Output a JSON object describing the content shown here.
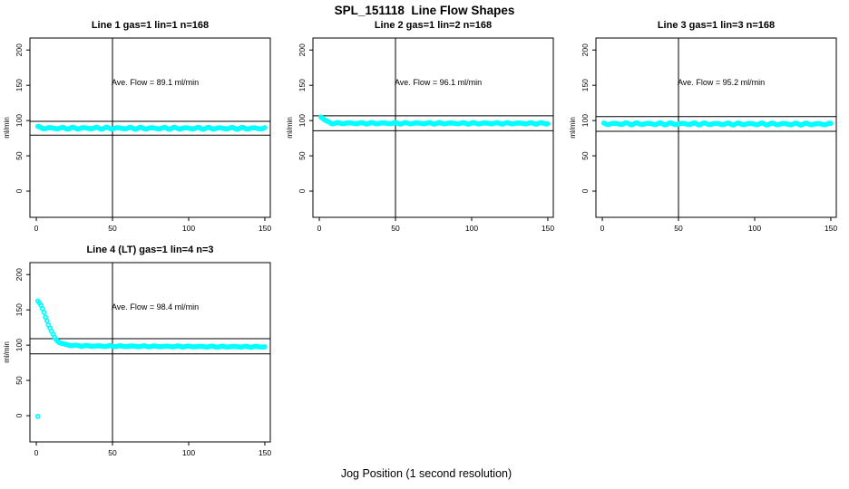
{
  "page_title": "SPL_151118  Line Flow Shapes",
  "xlabel": "Jog Position (1 second resolution)",
  "colors": {
    "points": "#00FFFF",
    "axis": "#000000",
    "background": "#ffffff"
  },
  "chart_data": [
    {
      "type": "scatter",
      "title": "Line 1 gas=1 lin=1 n=168",
      "line": 1,
      "gas": 1,
      "lin": 1,
      "n": 168,
      "annotation": "Ave. Flow =  89.1  ml/min",
      "ave_flow": 89.1,
      "ylabel": "ml/min",
      "x_ticks": [
        0,
        50,
        100,
        150
      ],
      "y_ticks": [
        0,
        50,
        100,
        150,
        200
      ],
      "xlim": [
        0,
        150
      ],
      "ylim": [
        -20,
        210
      ],
      "ref_lines": {
        "upper": 98.9,
        "lower": 79.3,
        "vertical_x": 50
      },
      "series": {
        "x_start": 1,
        "x_end": 150,
        "jitter": 1.2,
        "breakpoints": [
          [
            1,
            90.5
          ],
          [
            3,
            89.5
          ],
          [
            10,
            89.2
          ],
          [
            150,
            89.0
          ]
        ],
        "outliers": []
      }
    },
    {
      "type": "scatter",
      "title": "Line 2 gas=1 lin=2 n=168",
      "line": 2,
      "gas": 1,
      "lin": 2,
      "n": 168,
      "annotation": "Ave. Flow =  96.1  ml/min",
      "ave_flow": 96.1,
      "ylabel": "ml/min",
      "x_ticks": [
        0,
        50,
        100,
        150
      ],
      "y_ticks": [
        0,
        50,
        100,
        150,
        200
      ],
      "xlim": [
        0,
        150
      ],
      "ylim": [
        -20,
        210
      ],
      "ref_lines": {
        "upper": 106.7,
        "lower": 85.5,
        "vertical_x": 50
      },
      "series": {
        "x_start": 1,
        "x_end": 150,
        "jitter": 0.9,
        "breakpoints": [
          [
            1,
            105.5
          ],
          [
            2,
            104
          ],
          [
            3,
            102
          ],
          [
            4,
            100
          ],
          [
            5,
            98.5
          ],
          [
            6,
            97.5
          ],
          [
            8,
            96.5
          ],
          [
            12,
            96.2
          ],
          [
            150,
            96.0
          ]
        ],
        "outliers": []
      }
    },
    {
      "type": "scatter",
      "title": "Line 3 gas=1 lin=3 n=168",
      "line": 3,
      "gas": 1,
      "lin": 3,
      "n": 168,
      "annotation": "Ave. Flow =  95.2  ml/min",
      "ave_flow": 95.2,
      "ylabel": "ml/min",
      "x_ticks": [
        0,
        50,
        100,
        150
      ],
      "y_ticks": [
        0,
        50,
        100,
        150,
        200
      ],
      "xlim": [
        0,
        150
      ],
      "ylim": [
        -20,
        210
      ],
      "ref_lines": {
        "upper": 105.7,
        "lower": 84.7,
        "vertical_x": 50
      },
      "series": {
        "x_start": 1,
        "x_end": 150,
        "jitter": 1.2,
        "breakpoints": [
          [
            1,
            95.5
          ],
          [
            150,
            95.0
          ]
        ],
        "outliers": []
      }
    },
    {
      "type": "scatter",
      "title": "Line 4 (LT) gas=1 lin=4 n=3",
      "line": 4,
      "gas": 1,
      "lin": 4,
      "n": 3,
      "annotation": "Ave. Flow =  98.4  ml/min",
      "ave_flow": 98.4,
      "ylabel": "ml/min",
      "x_ticks": [
        0,
        50,
        100,
        150
      ],
      "y_ticks": [
        0,
        50,
        100,
        150,
        200
      ],
      "xlim": [
        0,
        150
      ],
      "ylim": [
        -20,
        210
      ],
      "ref_lines": {
        "upper": 109.2,
        "lower": 87.6,
        "vertical_x": 50
      },
      "series": {
        "x_start": 1,
        "x_end": 150,
        "jitter": 0.6,
        "breakpoints": [
          [
            1,
            163
          ],
          [
            2,
            160
          ],
          [
            3,
            156
          ],
          [
            4,
            151
          ],
          [
            5,
            146
          ],
          [
            6,
            140
          ],
          [
            7,
            135
          ],
          [
            8,
            129
          ],
          [
            9,
            124
          ],
          [
            10,
            119
          ],
          [
            11,
            115
          ],
          [
            12,
            111
          ],
          [
            13,
            108
          ],
          [
            14,
            106
          ],
          [
            15,
            104
          ],
          [
            16,
            103
          ],
          [
            18,
            101.5
          ],
          [
            20,
            100.5
          ],
          [
            23,
            99.8
          ],
          [
            27,
            99.2
          ],
          [
            35,
            98.8
          ],
          [
            50,
            98.5
          ],
          [
            80,
            98.2
          ],
          [
            120,
            97.8
          ],
          [
            150,
            97.6
          ]
        ],
        "outliers": [
          [
            1,
            -1
          ]
        ]
      }
    }
  ]
}
